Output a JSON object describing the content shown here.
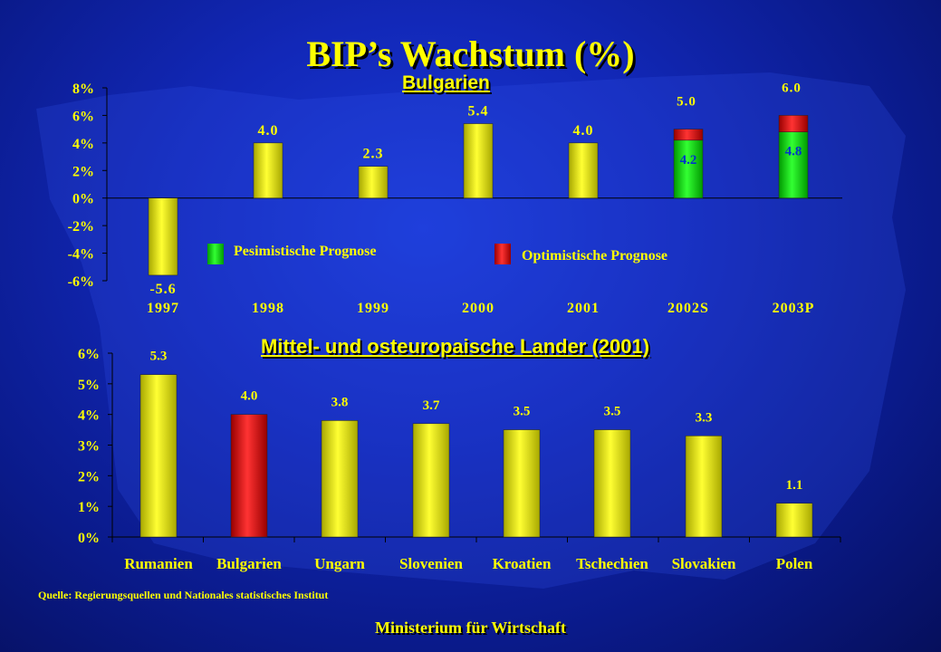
{
  "title": "BIP’s Wachstum (%)",
  "source": "Quelle: Regierungsquellen und Nationales statistisches Institut",
  "footer": "Ministerium für Wirtschaft",
  "colors": {
    "bar_yellow": "#ffff00",
    "bar_green": "#00dd00",
    "bar_red": "#ee0000",
    "text_yellow": "#ffff00",
    "inner_label_blue": "#0033cc"
  },
  "chart_data": [
    {
      "type": "bar",
      "title": "Bulgarien",
      "categories": [
        "1997",
        "1998",
        "1999",
        "2000",
        "2001",
        "2002S",
        "2003P"
      ],
      "values": [
        -5.6,
        4.0,
        2.3,
        5.4,
        4.0,
        5.0,
        6.0
      ],
      "pessimistic_values": [
        null,
        null,
        null,
        null,
        null,
        4.2,
        4.8
      ],
      "value_labels": [
        "-5.6",
        "4.0",
        "2.3",
        "5.4",
        "4.0",
        "5.0",
        "6.0"
      ],
      "pessimistic_labels": [
        "",
        "",
        "",
        "",
        "",
        "4.2",
        "4.8"
      ],
      "yticks": [
        "8%",
        "6%",
        "4%",
        "2%",
        "0%",
        "-2%",
        "-4%",
        "-6%"
      ],
      "ylim": [
        -6,
        8
      ],
      "legend": [
        {
          "label": "Pesimistische Prognose",
          "color": "#00dd00"
        },
        {
          "label": "Optimistische Prognose",
          "color": "#ee0000"
        }
      ],
      "grid": false
    },
    {
      "type": "bar",
      "title": "Mittel- und osteuropaische Lander (2001)",
      "categories": [
        "Rumanien",
        "Bulgarien",
        "Ungarn",
        "Slovenien",
        "Kroatien",
        "Tschechien",
        "Slovakien",
        "Polen"
      ],
      "values": [
        5.3,
        4.0,
        3.8,
        3.7,
        3.5,
        3.5,
        3.3,
        1.1
      ],
      "value_labels": [
        "5.3",
        "4.0",
        "3.8",
        "3.7",
        "3.5",
        "3.5",
        "3.3",
        "1.1"
      ],
      "highlight": "Bulgarien",
      "yticks": [
        "6%",
        "5%",
        "4%",
        "3%",
        "2%",
        "1%",
        "0%"
      ],
      "ylim": [
        0,
        6
      ],
      "grid": false
    }
  ]
}
